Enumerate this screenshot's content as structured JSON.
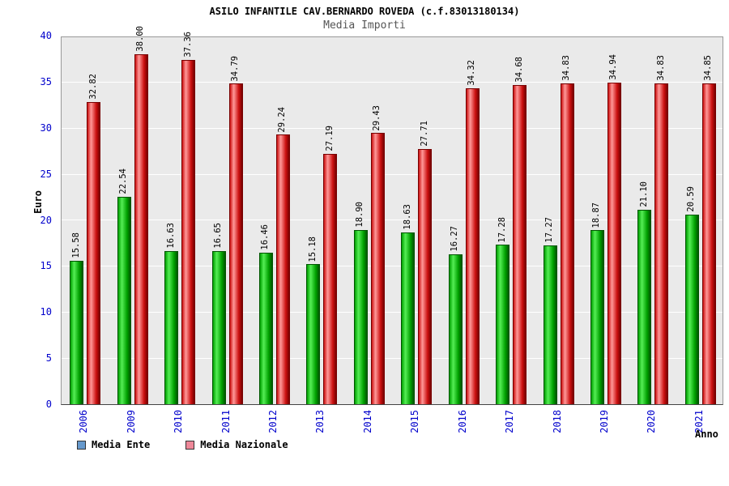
{
  "title": "ASILO INFANTILE CAV.BERNARDO ROVEDA (c.f.83013180134)",
  "subtitle": "Media Importi",
  "chart_data": {
    "type": "bar",
    "title": "ASILO INFANTILE CAV.BERNARDO ROVEDA (c.f.83013180134)",
    "subtitle": "Media Importi",
    "xlabel": "Anno",
    "ylabel": "Euro",
    "ylim": [
      0,
      40
    ],
    "ytick_step": 5,
    "grid": true,
    "legend_position": "bottom-left",
    "categories": [
      "2006",
      "2009",
      "2010",
      "2011",
      "2012",
      "2013",
      "2014",
      "2015",
      "2016",
      "2017",
      "2018",
      "2019",
      "2020",
      "2021"
    ],
    "series": [
      {
        "name": "Media Ente",
        "values": [
          15.58,
          22.54,
          16.63,
          16.65,
          16.46,
          15.18,
          18.9,
          18.63,
          16.27,
          17.28,
          17.27,
          18.87,
          21.1,
          20.59
        ],
        "bar_edge": "#005500",
        "bar_dark": "#00a000",
        "bar_light": "#55ee55",
        "legend_color": "#6699cc"
      },
      {
        "name": "Media Nazionale",
        "values": [
          32.82,
          38.0,
          37.36,
          34.79,
          29.24,
          27.19,
          29.43,
          27.71,
          34.32,
          34.68,
          34.83,
          34.94,
          34.83,
          34.85
        ],
        "bar_edge": "#770000",
        "bar_dark": "#cc1111",
        "bar_light": "#ff9999",
        "legend_color": "#ee8899"
      }
    ],
    "value_label_decimals": 2,
    "tick_color": "#0000cc",
    "plot_bg": "#eaeaea",
    "grid_color": "#ffffff"
  }
}
